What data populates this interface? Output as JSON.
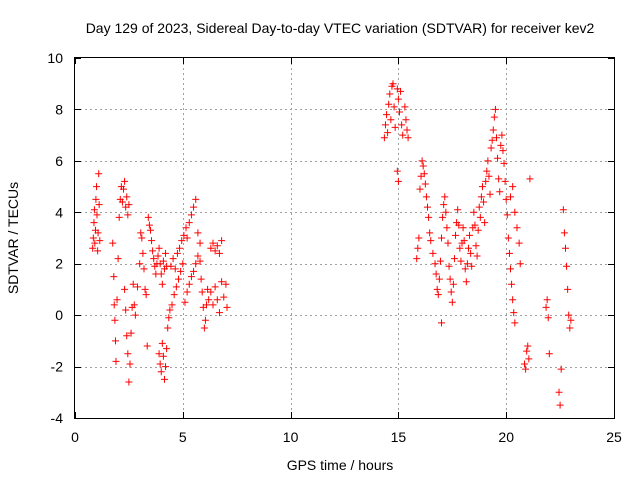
{
  "chart_data": {
    "type": "scatter",
    "title": "Day 129 of 2023, Sidereal Day-to-day VTEC variation (SDTVAR) for receiver kev2",
    "xlabel": "GPS time / hours",
    "ylabel": "SDTVAR / TECUs",
    "xlim": [
      0,
      25
    ],
    "ylim": [
      -4,
      10
    ],
    "xticks": [
      0,
      5,
      10,
      15,
      20,
      25
    ],
    "yticks": [
      -4,
      -2,
      0,
      2,
      4,
      6,
      8,
      10
    ],
    "grid": true,
    "marker": "+",
    "color": "#ff0000",
    "series": [
      {
        "name": "SDTVAR",
        "points": [
          [
            0.82,
            2.6
          ],
          [
            0.85,
            3.0
          ],
          [
            0.88,
            3.6
          ],
          [
            0.9,
            4.1
          ],
          [
            0.92,
            2.8
          ],
          [
            0.95,
            3.3
          ],
          [
            0.97,
            4.5
          ],
          [
            1.0,
            5.0
          ],
          [
            1.02,
            3.9
          ],
          [
            1.05,
            2.5
          ],
          [
            1.07,
            3.2
          ],
          [
            1.1,
            5.5
          ],
          [
            1.12,
            4.3
          ],
          [
            1.15,
            2.9
          ],
          [
            1.75,
            2.8
          ],
          [
            1.8,
            1.5
          ],
          [
            1.82,
            0.4
          ],
          [
            1.85,
            -0.2
          ],
          [
            1.88,
            -1.0
          ],
          [
            1.9,
            -1.8
          ],
          [
            1.95,
            0.6
          ],
          [
            2.0,
            2.2
          ],
          [
            2.05,
            3.8
          ],
          [
            2.1,
            4.5
          ],
          [
            2.15,
            5.0
          ],
          [
            2.2,
            4.4
          ],
          [
            2.25,
            4.9
          ],
          [
            2.3,
            5.2
          ],
          [
            2.35,
            4.2
          ],
          [
            2.4,
            4.6
          ],
          [
            2.45,
            3.9
          ],
          [
            2.5,
            4.3
          ],
          [
            2.3,
            1.0
          ],
          [
            2.35,
            0.2
          ],
          [
            2.4,
            -0.8
          ],
          [
            2.45,
            -1.5
          ],
          [
            2.5,
            -2.6
          ],
          [
            2.55,
            -1.9
          ],
          [
            2.6,
            -0.7
          ],
          [
            2.65,
            0.3
          ],
          [
            2.7,
            1.2
          ],
          [
            2.75,
            0.4
          ],
          [
            2.8,
            0.0
          ],
          [
            2.9,
            1.1
          ],
          [
            3.0,
            2.0
          ],
          [
            3.05,
            3.2
          ],
          [
            3.1,
            3.0
          ],
          [
            3.15,
            2.4
          ],
          [
            3.2,
            1.8
          ],
          [
            3.25,
            1.0
          ],
          [
            3.3,
            0.8
          ],
          [
            3.35,
            -1.2
          ],
          [
            3.4,
            3.8
          ],
          [
            3.45,
            3.5
          ],
          [
            3.5,
            3.3
          ],
          [
            3.55,
            2.9
          ],
          [
            3.6,
            2.5
          ],
          [
            3.65,
            2.2
          ],
          [
            3.7,
            1.9
          ],
          [
            3.75,
            1.6
          ],
          [
            3.8,
            2.0
          ],
          [
            3.85,
            2.3
          ],
          [
            3.9,
            2.6
          ],
          [
            3.95,
            2.0
          ],
          [
            4.0,
            1.6
          ],
          [
            4.05,
            1.2
          ],
          [
            4.1,
            2.1
          ],
          [
            4.15,
            1.8
          ],
          [
            4.2,
            2.4
          ],
          [
            4.25,
            1.9
          ],
          [
            3.9,
            -1.5
          ],
          [
            3.95,
            -1.9
          ],
          [
            4.0,
            -2.2
          ],
          [
            4.05,
            -1.1
          ],
          [
            4.1,
            -1.6
          ],
          [
            4.15,
            -2.5
          ],
          [
            4.2,
            -2.0
          ],
          [
            4.25,
            -1.3
          ],
          [
            4.3,
            -0.5
          ],
          [
            4.35,
            -0.1
          ],
          [
            4.4,
            0.2
          ],
          [
            4.5,
            0.4
          ],
          [
            4.6,
            0.8
          ],
          [
            4.7,
            1.1
          ],
          [
            4.8,
            1.4
          ],
          [
            4.9,
            1.7
          ],
          [
            5.0,
            2.0
          ],
          [
            4.45,
            1.9
          ],
          [
            4.55,
            2.2
          ],
          [
            4.65,
            1.8
          ],
          [
            4.75,
            2.4
          ],
          [
            4.85,
            2.6
          ],
          [
            4.95,
            2.9
          ],
          [
            5.05,
            3.1
          ],
          [
            5.15,
            3.4
          ],
          [
            5.2,
            3.0
          ],
          [
            5.3,
            3.6
          ],
          [
            5.4,
            3.9
          ],
          [
            5.5,
            4.2
          ],
          [
            5.6,
            4.5
          ],
          [
            5.7,
            3.2
          ],
          [
            5.8,
            2.8
          ],
          [
            5.1,
            0.5
          ],
          [
            5.2,
            0.9
          ],
          [
            5.3,
            1.2
          ],
          [
            5.4,
            1.5
          ],
          [
            5.5,
            1.7
          ],
          [
            5.6,
            2.0
          ],
          [
            5.7,
            2.3
          ],
          [
            5.8,
            2.1
          ],
          [
            5.85,
            1.4
          ],
          [
            5.9,
            0.9
          ],
          [
            5.95,
            0.3
          ],
          [
            6.0,
            -0.5
          ],
          [
            6.05,
            -0.2
          ],
          [
            6.1,
            0.4
          ],
          [
            6.15,
            1.0
          ],
          [
            6.2,
            0.6
          ],
          [
            6.3,
            2.6
          ],
          [
            6.4,
            2.8
          ],
          [
            6.5,
            2.5
          ],
          [
            6.6,
            2.7
          ],
          [
            6.7,
            2.4
          ],
          [
            6.8,
            2.9
          ],
          [
            6.3,
            0.9
          ],
          [
            6.4,
            0.4
          ],
          [
            6.5,
            1.1
          ],
          [
            6.6,
            0.6
          ],
          [
            6.7,
            0.1
          ],
          [
            6.8,
            1.3
          ],
          [
            6.9,
            0.7
          ],
          [
            7.0,
            1.2
          ],
          [
            7.05,
            0.3
          ],
          [
            14.35,
            6.9
          ],
          [
            14.4,
            7.4
          ],
          [
            14.45,
            7.8
          ],
          [
            14.5,
            7.1
          ],
          [
            14.55,
            8.2
          ],
          [
            14.6,
            8.6
          ],
          [
            14.65,
            7.6
          ],
          [
            14.7,
            8.9
          ],
          [
            14.75,
            9.0
          ],
          [
            14.8,
            8.1
          ],
          [
            14.85,
            7.3
          ],
          [
            14.95,
            8.8
          ],
          [
            15.0,
            8.4
          ],
          [
            15.05,
            7.9
          ],
          [
            15.1,
            8.7
          ],
          [
            15.15,
            7.4
          ],
          [
            15.2,
            7.0
          ],
          [
            15.3,
            8.1
          ],
          [
            15.35,
            7.6
          ],
          [
            15.4,
            7.2
          ],
          [
            15.45,
            6.9
          ],
          [
            14.95,
            5.6
          ],
          [
            15.0,
            5.2
          ],
          [
            15.85,
            2.2
          ],
          [
            15.9,
            2.6
          ],
          [
            15.95,
            3.0
          ],
          [
            16.0,
            4.9
          ],
          [
            16.05,
            5.4
          ],
          [
            16.1,
            6.0
          ],
          [
            16.15,
            5.8
          ],
          [
            16.2,
            5.5
          ],
          [
            16.25,
            5.1
          ],
          [
            16.3,
            4.6
          ],
          [
            16.35,
            4.2
          ],
          [
            16.4,
            3.8
          ],
          [
            16.45,
            3.2
          ],
          [
            16.5,
            2.9
          ],
          [
            16.6,
            2.4
          ],
          [
            16.7,
            2.0
          ],
          [
            16.75,
            1.6
          ],
          [
            16.8,
            1.0
          ],
          [
            16.85,
            0.8
          ],
          [
            16.9,
            1.4
          ],
          [
            16.95,
            2.1
          ],
          [
            17.0,
            3.0
          ],
          [
            17.05,
            3.8
          ],
          [
            17.1,
            4.3
          ],
          [
            17.15,
            4.6
          ],
          [
            17.2,
            4.0
          ],
          [
            17.25,
            3.4
          ],
          [
            17.3,
            2.8
          ],
          [
            17.0,
            -0.3
          ],
          [
            17.35,
            1.9
          ],
          [
            17.4,
            1.4
          ],
          [
            17.45,
            0.9
          ],
          [
            17.5,
            0.5
          ],
          [
            17.55,
            1.2
          ],
          [
            17.6,
            2.2
          ],
          [
            17.65,
            3.1
          ],
          [
            17.7,
            3.6
          ],
          [
            17.75,
            4.1
          ],
          [
            17.8,
            3.5
          ],
          [
            17.85,
            2.6
          ],
          [
            17.9,
            2.1
          ],
          [
            17.95,
            2.8
          ],
          [
            18.0,
            3.4
          ],
          [
            18.05,
            2.9
          ],
          [
            18.1,
            1.8
          ],
          [
            18.15,
            1.3
          ],
          [
            18.2,
            2.0
          ],
          [
            18.25,
            2.6
          ],
          [
            18.3,
            3.1
          ],
          [
            18.35,
            2.4
          ],
          [
            18.4,
            1.9
          ],
          [
            18.45,
            3.4
          ],
          [
            18.5,
            4.0
          ],
          [
            18.55,
            3.5
          ],
          [
            18.6,
            2.7
          ],
          [
            18.65,
            2.3
          ],
          [
            18.7,
            3.3
          ],
          [
            18.75,
            4.2
          ],
          [
            18.8,
            3.8
          ],
          [
            18.85,
            4.6
          ],
          [
            18.9,
            5.0
          ],
          [
            18.95,
            4.4
          ],
          [
            19.0,
            3.6
          ],
          [
            19.05,
            5.2
          ],
          [
            19.1,
            5.6
          ],
          [
            19.15,
            6.0
          ],
          [
            19.2,
            5.4
          ],
          [
            19.25,
            4.7
          ],
          [
            19.3,
            6.5
          ],
          [
            19.35,
            6.8
          ],
          [
            19.4,
            7.2
          ],
          [
            19.45,
            7.7
          ],
          [
            19.5,
            8.0
          ],
          [
            19.55,
            6.9
          ],
          [
            19.6,
            6.1
          ],
          [
            19.65,
            5.3
          ],
          [
            19.7,
            4.8
          ],
          [
            19.75,
            6.6
          ],
          [
            19.8,
            7.0
          ],
          [
            19.85,
            6.4
          ],
          [
            19.9,
            5.9
          ],
          [
            19.95,
            5.2
          ],
          [
            20.0,
            4.5
          ],
          [
            20.05,
            3.9
          ],
          [
            20.1,
            3.0
          ],
          [
            20.15,
            2.4
          ],
          [
            20.2,
            1.8
          ],
          [
            20.25,
            1.2
          ],
          [
            20.3,
            0.6
          ],
          [
            20.35,
            0.1
          ],
          [
            20.4,
            -0.3
          ],
          [
            20.2,
            4.6
          ],
          [
            20.3,
            5.0
          ],
          [
            20.4,
            4.0
          ],
          [
            20.5,
            3.4
          ],
          [
            20.6,
            2.8
          ],
          [
            20.65,
            2.0
          ],
          [
            20.85,
            -1.9
          ],
          [
            20.9,
            -2.1
          ],
          [
            20.95,
            -1.4
          ],
          [
            21.0,
            -1.2
          ],
          [
            21.05,
            -1.7
          ],
          [
            21.1,
            5.3
          ],
          [
            21.85,
            0.3
          ],
          [
            21.9,
            0.6
          ],
          [
            21.95,
            -0.1
          ],
          [
            22.0,
            -1.5
          ],
          [
            22.45,
            -3.0
          ],
          [
            22.5,
            -3.5
          ],
          [
            22.55,
            -2.1
          ],
          [
            22.65,
            4.1
          ],
          [
            22.7,
            3.2
          ],
          [
            22.75,
            2.6
          ],
          [
            22.8,
            1.9
          ],
          [
            22.85,
            1.0
          ],
          [
            22.9,
            0.0
          ],
          [
            22.95,
            -0.5
          ],
          [
            23.0,
            -0.2
          ]
        ]
      }
    ]
  }
}
